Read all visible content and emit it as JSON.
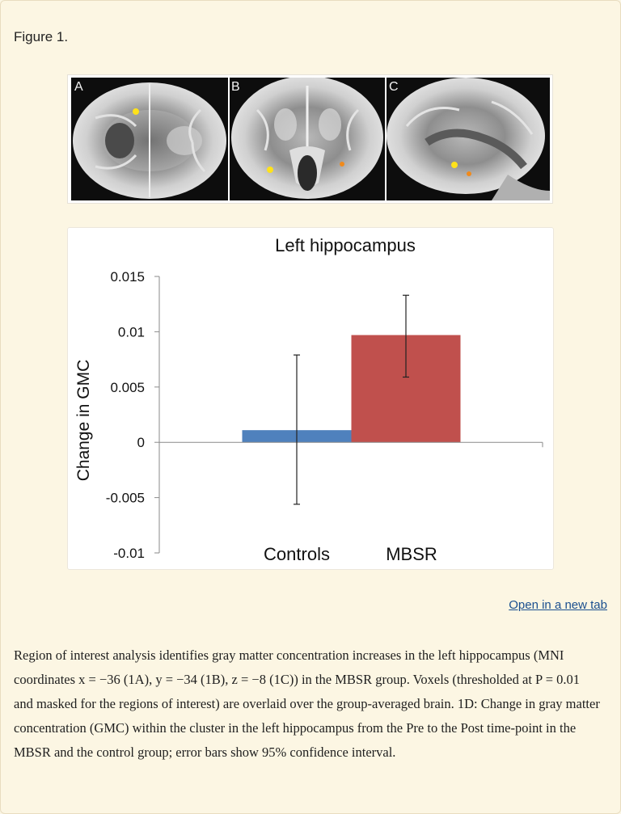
{
  "figure_label": "Figure 1.",
  "brain_panels": [
    {
      "label": "A",
      "view": "axial slice"
    },
    {
      "label": "B",
      "view": "coronal slice"
    },
    {
      "label": "C",
      "view": "sagittal slice"
    }
  ],
  "colors": {
    "controls": "#4f81bd",
    "mbsr": "#c0504d",
    "highlight_yellow": "#ffe21a",
    "highlight_orange": "#f08a1c",
    "link": "#1a4f8f"
  },
  "chart_data": {
    "type": "bar",
    "title": "Left hippocampus",
    "ylabel": "Change in GMC",
    "xlabel": "",
    "categories": [
      "Controls",
      "MBSR"
    ],
    "values": [
      0.0011,
      0.0097
    ],
    "error_high": [
      0.0079,
      0.0133
    ],
    "error_low": [
      -0.0056,
      0.0059
    ],
    "ylim": [
      -0.01,
      0.015
    ],
    "yticks": [
      0.015,
      0.01,
      0.005,
      0,
      -0.005,
      -0.01
    ],
    "ytick_labels": [
      "0.015",
      "0.01",
      "0.005",
      "0",
      "-0.005",
      "-0.01"
    ],
    "grid": false,
    "legend": "none"
  },
  "open_link": "Open in a new tab",
  "caption": "Region of interest analysis identifies gray matter concentration increases in the left hippocampus (MNI coordinates x = −36 (1A), y = −34 (1B), z = −8 (1C)) in the MBSR group. Voxels (thresholded at P = 0.01 and masked for the regions of interest) are overlaid over the group-averaged brain. 1D: Change in gray matter concentration (GMC) within the cluster in the left hippocampus from the Pre to the Post time-point in the MBSR and the control group; error bars show 95% confidence interval."
}
